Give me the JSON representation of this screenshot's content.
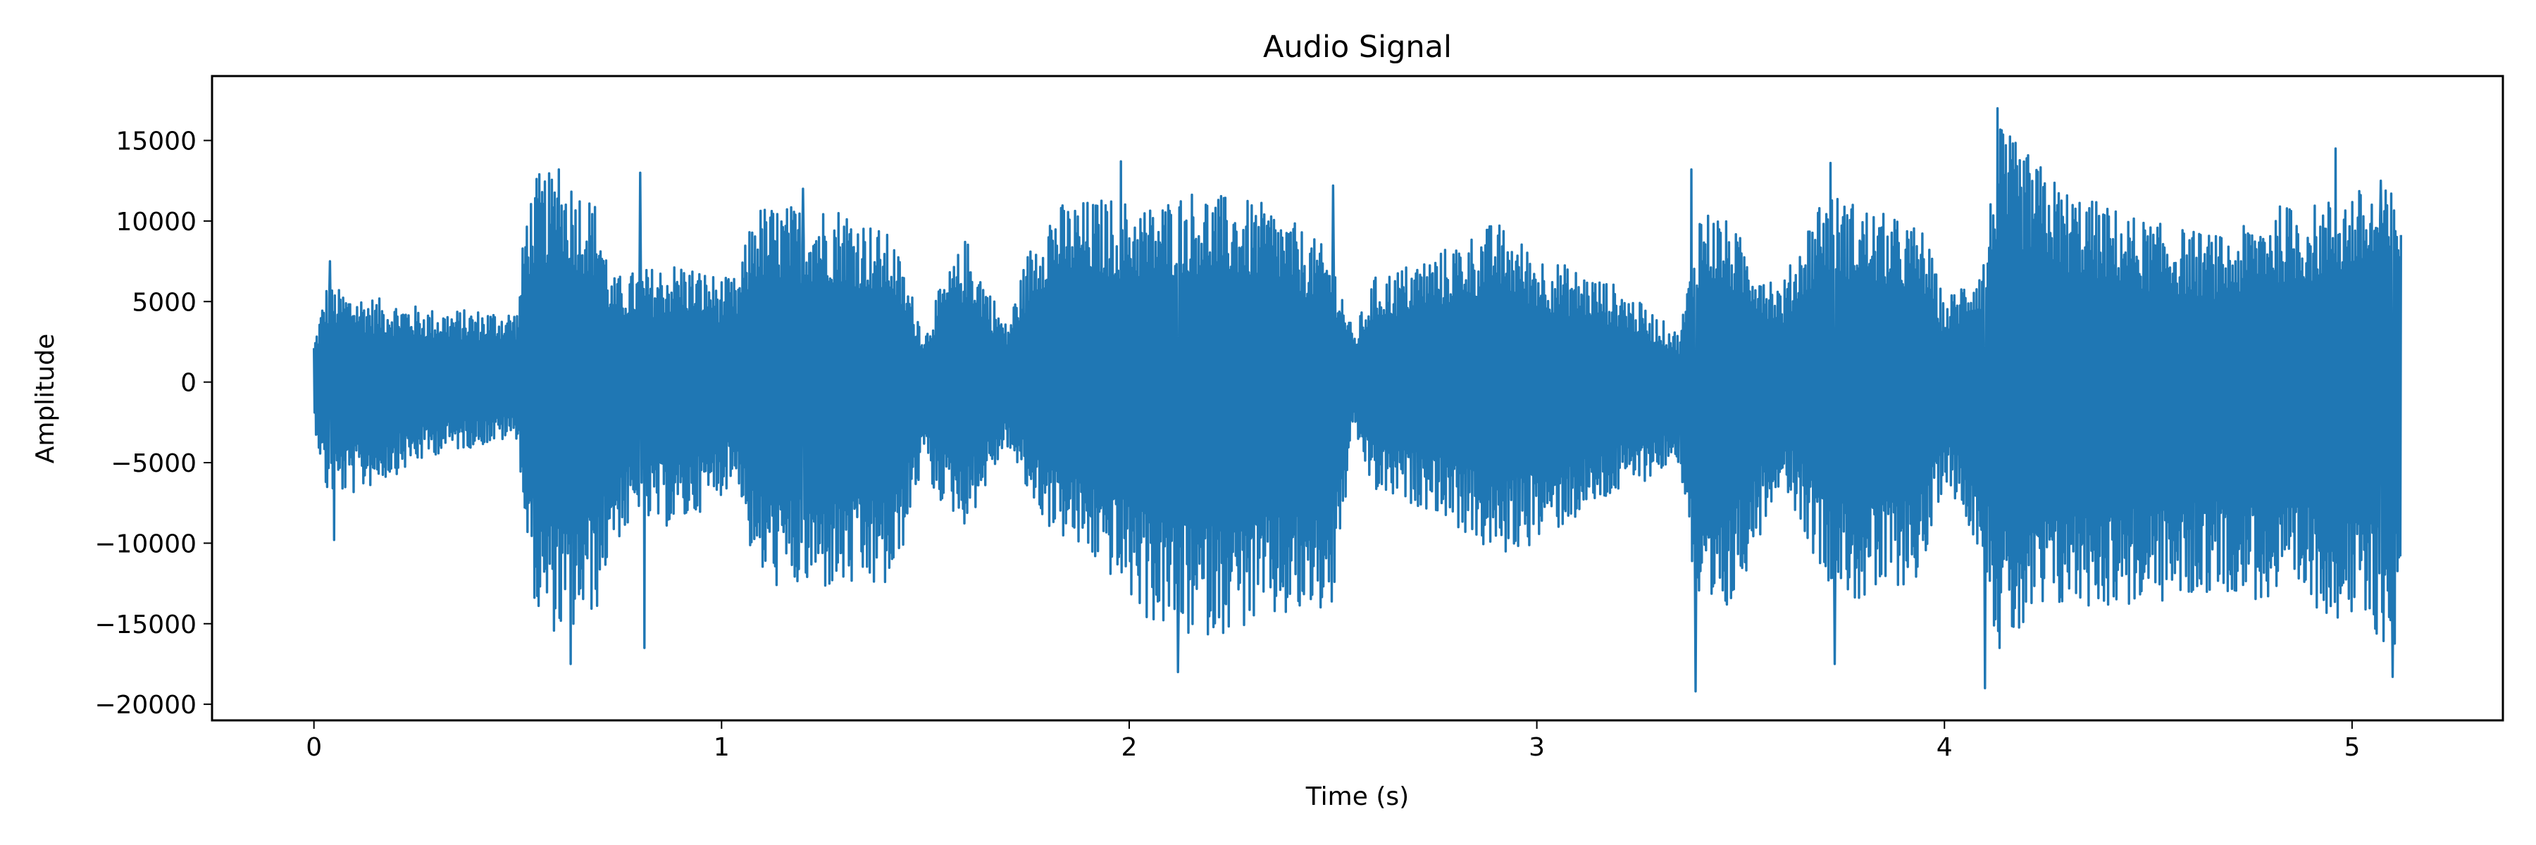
{
  "chart_data": {
    "type": "line",
    "title": "Audio Signal",
    "xlabel": "Time (s)",
    "ylabel": "Amplitude",
    "xlim": [
      -0.25,
      5.37
    ],
    "ylim": [
      -21000,
      19000
    ],
    "xticks": [
      0,
      1,
      2,
      3,
      4,
      5
    ],
    "xtick_labels": [
      "0",
      "1",
      "2",
      "3",
      "4",
      "5"
    ],
    "yticks": [
      -20000,
      -15000,
      -10000,
      -5000,
      0,
      5000,
      10000,
      15000
    ],
    "ytick_labels": [
      "−20000",
      "−15000",
      "−10000",
      "−5000",
      "0",
      "5000",
      "10000",
      "15000"
    ],
    "grid": false,
    "series": [
      {
        "color": "#1f77b4",
        "duration": 5.12,
        "envelope": {
          "t": [
            0.0,
            0.03,
            0.1,
            0.3,
            0.5,
            0.52,
            0.55,
            0.62,
            0.7,
            0.73,
            0.8,
            0.9,
            1.0,
            1.04,
            1.08,
            1.15,
            1.3,
            1.42,
            1.5,
            1.52,
            1.6,
            1.7,
            1.75,
            1.8,
            1.95,
            2.05,
            2.15,
            2.35,
            2.5,
            2.55,
            2.6,
            2.75,
            2.9,
            3.0,
            3.2,
            3.35,
            3.4,
            3.45,
            3.6,
            3.7,
            3.8,
            3.95,
            4.0,
            4.1,
            4.13,
            4.3,
            4.5,
            4.7,
            4.8,
            4.9,
            5.0,
            5.12
          ],
          "pos": [
            2500,
            6000,
            5500,
            4500,
            4500,
            11000,
            13000,
            13000,
            11000,
            6500,
            7000,
            7500,
            6500,
            6500,
            11000,
            11000,
            11000,
            9000,
            3000,
            5000,
            9000,
            3500,
            8000,
            11000,
            11500,
            11000,
            12000,
            11000,
            8000,
            3000,
            6500,
            8000,
            10000,
            8000,
            6000,
            3000,
            11000,
            10500,
            6000,
            12000,
            11000,
            9500,
            5000,
            8000,
            16000,
            12000,
            10000,
            9000,
            11000,
            11000,
            12000,
            12000
          ],
          "neg": [
            -2500,
            -7000,
            -7000,
            -4500,
            -3500,
            -10000,
            -15000,
            -16000,
            -14000,
            -10000,
            -9000,
            -9000,
            -7000,
            -6000,
            -12000,
            -13000,
            -13000,
            -13000,
            -4500,
            -7000,
            -9000,
            -4000,
            -7000,
            -9000,
            -12000,
            -15000,
            -16000,
            -15000,
            -14500,
            -3000,
            -7000,
            -8000,
            -11000,
            -10000,
            -7000,
            -5000,
            -16000,
            -16000,
            -6000,
            -12000,
            -14000,
            -12000,
            -6000,
            -11000,
            -17000,
            -14000,
            -14000,
            -13000,
            -14000,
            -14000,
            -15000,
            -17000
          ]
        },
        "peaks": [
          {
            "t": 0.04,
            "v": 7500
          },
          {
            "t": 0.05,
            "v": -9800
          },
          {
            "t": 0.6,
            "v": 13200
          },
          {
            "t": 0.63,
            "v": -17500
          },
          {
            "t": 0.8,
            "v": 13000
          },
          {
            "t": 0.81,
            "v": -16500
          },
          {
            "t": 1.2,
            "v": 12000
          },
          {
            "t": 1.98,
            "v": 13700
          },
          {
            "t": 2.12,
            "v": -18000
          },
          {
            "t": 2.5,
            "v": 12200
          },
          {
            "t": 3.38,
            "v": 13200
          },
          {
            "t": 3.39,
            "v": -19200
          },
          {
            "t": 3.72,
            "v": 13600
          },
          {
            "t": 3.73,
            "v": -17500
          },
          {
            "t": 4.1,
            "v": -19000
          },
          {
            "t": 4.13,
            "v": 17000
          },
          {
            "t": 4.96,
            "v": 14500
          },
          {
            "t": 5.1,
            "v": -18300
          },
          {
            "t": 5.07,
            "v": 12500
          }
        ]
      }
    ]
  }
}
